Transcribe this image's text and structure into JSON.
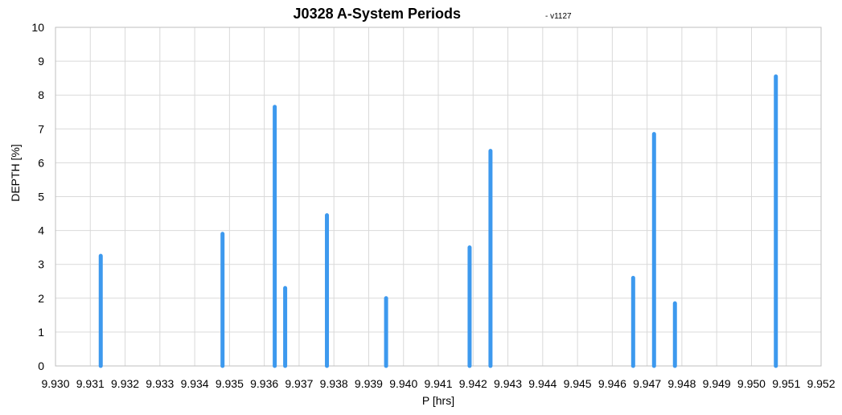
{
  "chart_data": {
    "type": "bar",
    "title": "J0328 A-System Periods",
    "subtitle": "- v1127",
    "xlabel": "P [hrs]",
    "ylabel": "DEPTH [%]",
    "xlim": [
      9.93,
      9.952
    ],
    "ylim": [
      0,
      10
    ],
    "x_ticks": [
      "9.930",
      "9.931",
      "9.932",
      "9.933",
      "9.934",
      "9.935",
      "9.936",
      "9.937",
      "9.938",
      "9.939",
      "9.940",
      "9.941",
      "9.942",
      "9.943",
      "9.944",
      "9.945",
      "9.946",
      "9.947",
      "9.948",
      "9.949",
      "9.950",
      "9.951",
      "9.952"
    ],
    "y_ticks": [
      "0",
      "1",
      "2",
      "3",
      "4",
      "5",
      "6",
      "7",
      "8",
      "9",
      "10"
    ],
    "grid": true,
    "series_color": "#3d99ee",
    "points": [
      {
        "x": 9.9313,
        "y": 3.25
      },
      {
        "x": 9.9348,
        "y": 3.9
      },
      {
        "x": 9.9363,
        "y": 7.65
      },
      {
        "x": 9.9366,
        "y": 2.3
      },
      {
        "x": 9.9378,
        "y": 4.45
      },
      {
        "x": 9.9395,
        "y": 2.0
      },
      {
        "x": 9.9419,
        "y": 3.5
      },
      {
        "x": 9.9425,
        "y": 6.35
      },
      {
        "x": 9.9466,
        "y": 2.6
      },
      {
        "x": 9.9472,
        "y": 6.85
      },
      {
        "x": 9.9478,
        "y": 1.85
      },
      {
        "x": 9.9507,
        "y": 8.55
      }
    ]
  }
}
